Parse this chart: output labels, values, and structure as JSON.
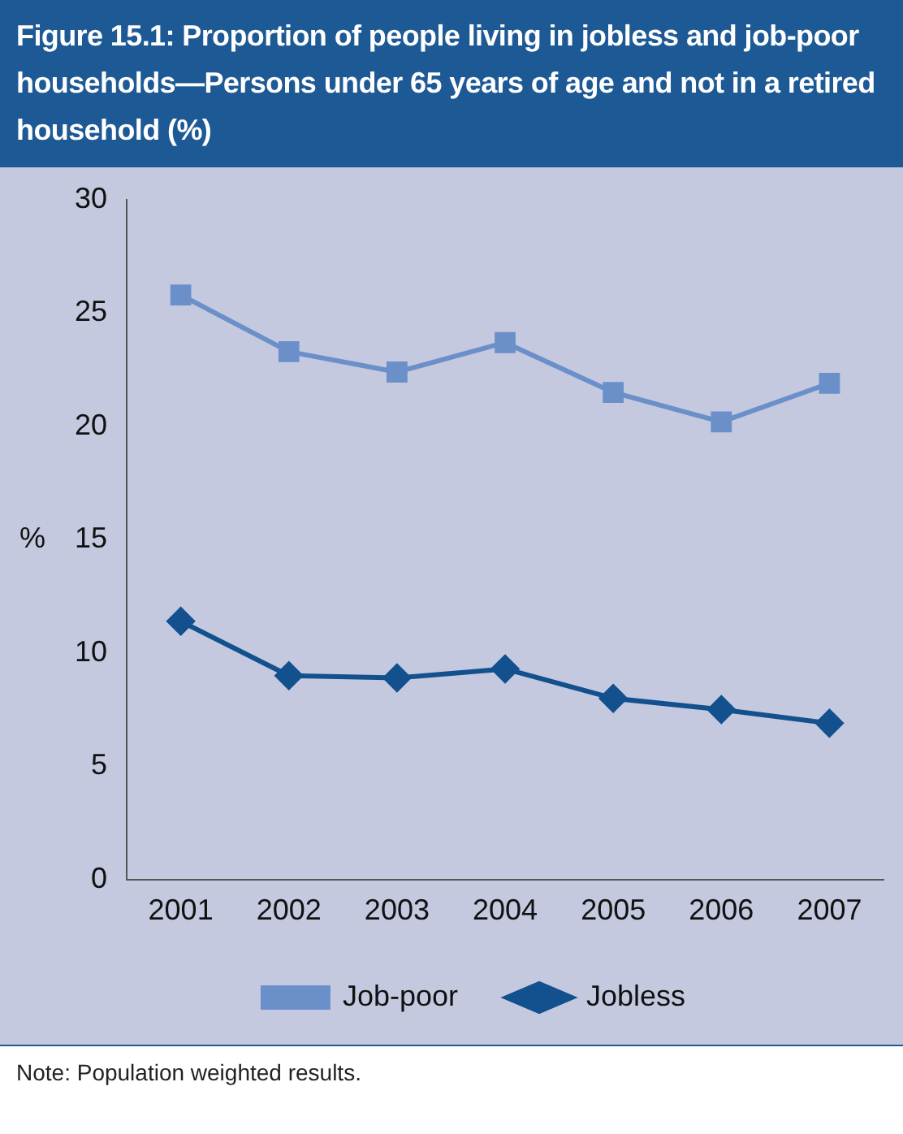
{
  "chart_data": {
    "type": "line",
    "title": "Figure 15.1: Proportion of people living in jobless and job-poor households—Persons under 65 years of age and not in a retired household (%)",
    "ylabel": "%",
    "categories": [
      "2001",
      "2002",
      "2003",
      "2004",
      "2005",
      "2006",
      "2007"
    ],
    "series": [
      {
        "name": "Job-poor",
        "color": "#6b90c9",
        "marker": "square",
        "values": [
          25.8,
          23.3,
          22.4,
          23.7,
          21.5,
          20.2,
          21.9
        ]
      },
      {
        "name": "Jobless",
        "color": "#13508e",
        "marker": "diamond",
        "values": [
          11.4,
          9.0,
          8.9,
          9.3,
          8.0,
          7.5,
          6.9
        ]
      }
    ],
    "ylim": [
      0,
      30
    ],
    "yticks": [
      0,
      5,
      10,
      15,
      20,
      25,
      30
    ],
    "grid": false,
    "legend": "bottom",
    "annotations": [
      "Note: Population weighted results."
    ]
  }
}
